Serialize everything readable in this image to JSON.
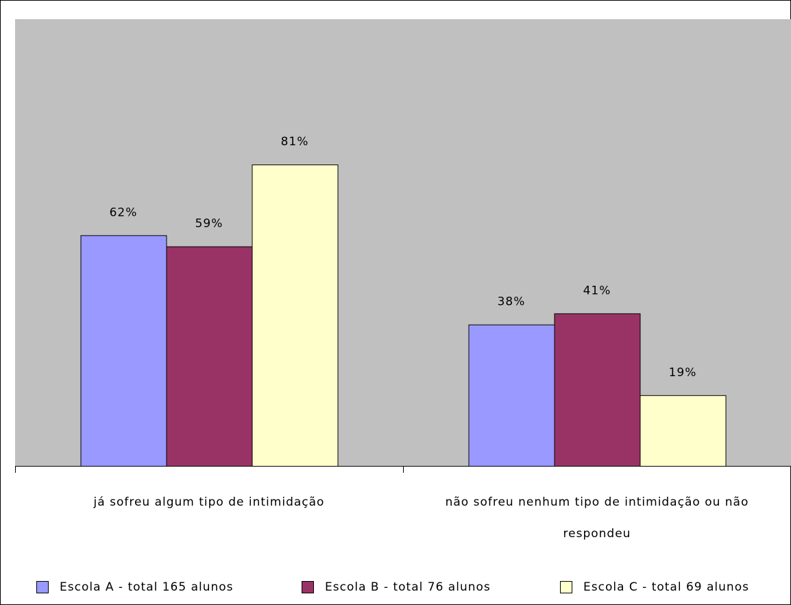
{
  "chart_data": {
    "type": "bar",
    "categories": [
      [
        "já sofreu algum tipo de intimidação"
      ],
      [
        "não sofreu nenhum tipo de intimidação ou não",
        "respondeu"
      ]
    ],
    "series": [
      {
        "name": "Escola A - total 165 alunos",
        "values": [
          62,
          38
        ],
        "labels": [
          "62%",
          "38%"
        ],
        "color": "#9999FF"
      },
      {
        "name": "Escola B - total 76 alunos",
        "values": [
          59,
          41
        ],
        "labels": [
          "59%",
          "41%"
        ],
        "color": "#993366"
      },
      {
        "name": "Escola C - total 69 alunos",
        "values": [
          81,
          19
        ],
        "labels": [
          "81%",
          "19%"
        ],
        "color": "#FFFFCC"
      }
    ],
    "ylim": [
      0,
      100
    ],
    "grid": false,
    "legend_position": "bottom",
    "plot_background": "#C0C0C0"
  }
}
